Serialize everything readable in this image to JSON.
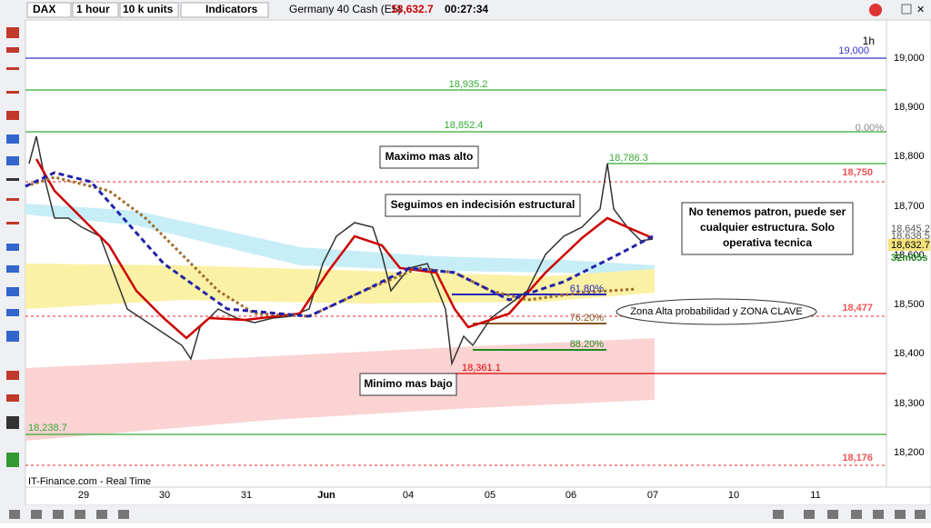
{
  "toolbar": {
    "symbol": "DAX",
    "timeframe": "1 hour",
    "units": "10 k units",
    "indicators": "Indicators",
    "instrument": "Germany 40 Cash (E5)",
    "price": "18,632.7",
    "timer": "00:27:34"
  },
  "chart": {
    "period": "1h",
    "price_axis": [
      "19,000",
      "18,900",
      "18,800",
      "18,700",
      "18,600",
      "18,500",
      "18,400",
      "18,300",
      "18,200"
    ],
    "axis_tags": {
      "top_level": "19,000",
      "fib_zero": "0.00%",
      "level_high": "18,750",
      "level_mid": "18,477",
      "level_low": "18,176",
      "price_a": "18,645.2",
      "price_b": "18,638.5",
      "price_last": "18,632.7",
      "countdown": "32m05s"
    },
    "levels": [
      "18,935.2",
      "18,852.4",
      "18,786.3",
      "18,361.1",
      "18,238.7"
    ],
    "fib": [
      "61.80%",
      "76.20%",
      "88.20%"
    ],
    "annotations": {
      "high": "Maximo mas alto",
      "indecision": "Seguimos en indecisión estructural",
      "no_pattern": "No tenemos patron, puede ser cualquier estructura. Solo operativa tecnica",
      "zone": "Zona Alta probabilidad y ZONA CLAVE",
      "low": "Minimo mas bajo"
    },
    "dates": [
      "29",
      "30",
      "31",
      "Jun",
      "04",
      "05",
      "06",
      "07",
      "10",
      "11"
    ],
    "source": "IT-Finance.com - Real Time"
  }
}
